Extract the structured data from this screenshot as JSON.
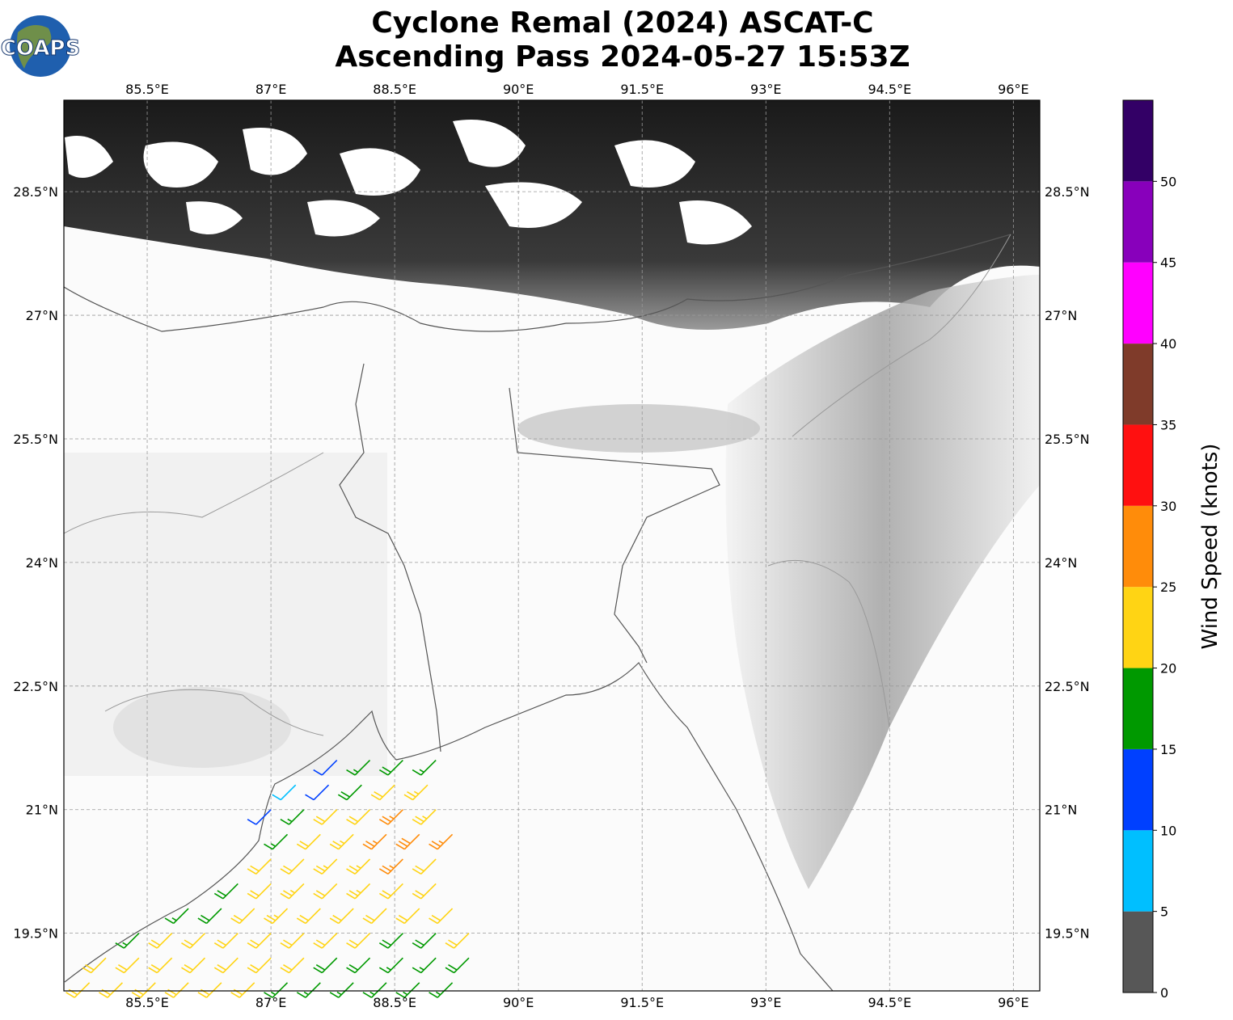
{
  "logo": "COAPS",
  "title": [
    "Cyclone Remal (2024) ASCAT-C",
    "Ascending Pass 2024-05-27 15:53Z"
  ],
  "map": {
    "lonlim": [
      84.49,
      96.32
    ],
    "latlim": [
      18.8,
      29.61
    ],
    "grid": true,
    "lonticks": [
      {
        "value": 85.5,
        "label": "85.5°E"
      },
      {
        "value": 87,
        "label": "87°E"
      },
      {
        "value": 88.5,
        "label": "88.5°E"
      },
      {
        "value": 90,
        "label": "90°E"
      },
      {
        "value": 91.5,
        "label": "91.5°E"
      },
      {
        "value": 93,
        "label": "93°E"
      },
      {
        "value": 94.5,
        "label": "94.5°E"
      },
      {
        "value": 96,
        "label": "96°E"
      }
    ],
    "latticks": [
      {
        "value": 19.5,
        "label": "19.5°N"
      },
      {
        "value": 21,
        "label": "21°N"
      },
      {
        "value": 22.5,
        "label": "22.5°N"
      },
      {
        "value": 24,
        "label": "24°N"
      },
      {
        "value": 25.5,
        "label": "25.5°N"
      },
      {
        "value": 27,
        "label": "27°N"
      },
      {
        "value": 28.5,
        "label": "28.5°N"
      }
    ]
  },
  "barbs": {
    "lon": [
      87.8,
      88.2,
      88.6,
      89.0,
      87.3,
      87.7,
      88.1,
      88.5,
      88.9,
      87.0,
      87.4,
      87.8,
      88.2,
      88.6,
      89.0,
      87.2,
      87.6,
      88.0,
      88.4,
      88.8,
      89.2,
      87.0,
      87.4,
      87.8,
      88.2,
      88.6,
      89.0,
      86.6,
      87.0,
      87.4,
      87.8,
      88.2,
      88.6,
      89.0,
      86.0,
      86.4,
      86.8,
      87.2,
      87.6,
      88.0,
      88.4,
      88.8,
      89.2,
      85.4,
      85.8,
      86.2,
      86.6,
      87.0,
      87.4,
      87.8,
      88.2,
      88.6,
      89.0,
      89.4,
      85.0,
      85.4,
      85.8,
      86.2,
      86.6,
      87.0,
      87.4,
      87.8,
      88.2,
      88.6,
      89.0,
      89.4,
      84.8,
      85.2,
      85.6,
      86.0,
      86.4,
      86.8,
      87.2,
      87.6,
      88.0,
      88.4,
      88.8,
      89.2
    ],
    "lat": [
      21.6,
      21.6,
      21.6,
      21.6,
      21.3,
      21.3,
      21.3,
      21.3,
      21.3,
      21.0,
      21.0,
      21.0,
      21.0,
      21.0,
      21.0,
      20.7,
      20.7,
      20.7,
      20.7,
      20.7,
      20.7,
      20.4,
      20.4,
      20.4,
      20.4,
      20.4,
      20.4,
      20.1,
      20.1,
      20.1,
      20.1,
      20.1,
      20.1,
      20.1,
      19.8,
      19.8,
      19.8,
      19.8,
      19.8,
      19.8,
      19.8,
      19.8,
      19.8,
      19.5,
      19.5,
      19.5,
      19.5,
      19.5,
      19.5,
      19.5,
      19.5,
      19.5,
      19.5,
      19.5,
      19.2,
      19.2,
      19.2,
      19.2,
      19.2,
      19.2,
      19.2,
      19.2,
      19.2,
      19.2,
      19.2,
      19.2,
      18.9,
      18.9,
      18.9,
      18.9,
      18.9,
      18.9,
      18.9,
      18.9,
      18.9,
      18.9,
      18.9,
      18.9
    ],
    "speed": [
      11,
      17,
      19,
      17,
      8,
      12,
      18,
      22,
      23,
      12,
      16,
      22,
      21,
      27,
      23,
      17,
      22,
      23,
      27,
      28,
      26,
      21,
      22,
      23,
      24,
      26,
      22,
      18,
      22,
      23,
      22,
      23,
      22,
      21,
      17,
      18,
      22,
      23,
      22,
      21,
      21,
      22,
      21,
      17,
      21,
      22,
      22,
      22,
      22,
      21,
      20,
      18,
      19,
      21,
      22,
      22,
      21,
      22,
      22,
      22,
      21,
      19,
      18,
      17,
      17,
      18,
      22,
      22,
      21,
      22,
      22,
      21,
      17,
      17,
      17,
      17,
      17,
      17
    ]
  },
  "colorbar": {
    "label": "Wind Speed (knots)",
    "bounds": [
      0,
      5,
      10,
      15,
      20,
      25,
      30,
      35,
      40,
      45,
      50,
      55
    ],
    "colors": [
      "#575757",
      "#00bfff",
      "#0040ff",
      "#009900",
      "#ffd414",
      "#ff8c0a",
      "#ff1010",
      "#7f3b2a",
      "#ff00ff",
      "#8800bb",
      "#330066"
    ],
    "ticks": [
      0,
      5,
      10,
      15,
      20,
      25,
      30,
      35,
      40,
      45,
      50
    ]
  }
}
